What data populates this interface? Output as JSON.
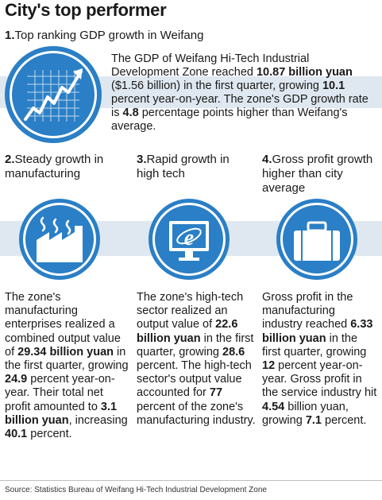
{
  "title": "City's top performer",
  "section1": {
    "number": "1.",
    "heading": "Top ranking GDP growth in Weifang",
    "text_a": "The GDP of Weifang Hi-Tech Industrial Development Zone reached ",
    "bold_a": "10.87 billion yuan",
    "text_b": " ($1.56 billion) in the first quarter, growing ",
    "bold_b": "10.1",
    "text_c": " percent year-on-year. The zone's GDP growth rate is ",
    "bold_c": "4.8",
    "text_d": " percentage points higher than Weifang's average."
  },
  "section2": {
    "number": "2.",
    "heading": "Steady growth in manufacturing",
    "text_a": "The zone's manufacturing enterprises realized a combined output value of ",
    "bold_a": "29.34 billion yuan",
    "text_b": " in the first quarter, growing ",
    "bold_b": "24.9",
    "text_c": " percent year-on-year. Their total net profit amounted to ",
    "bold_c": "3.1 billion yuan",
    "text_d": ", increasing ",
    "bold_d": "40.1",
    "text_e": " percent."
  },
  "section3": {
    "number": "3.",
    "heading": "Rapid growth in high tech",
    "text_a": "The zone's high-tech sector realized an output value of ",
    "bold_a": "22.6 billion yuan",
    "text_b": " in the first quarter, growing ",
    "bold_b": "28.6",
    "text_c": " percent. The high-tech sector's output value accounted for ",
    "bold_c": "77",
    "text_d": " percent of the zone's manufacturing industry."
  },
  "section4": {
    "number": "4.",
    "heading": "Gross profit growth higher than city average",
    "text_a": "Gross profit in the manufacturing industry reached ",
    "bold_a": "6.33 billion yuan",
    "text_b": " in the first quarter, growing ",
    "bold_b": "12",
    "text_c": " percent year-on-year. Gross profit in the service industry hit ",
    "bold_c": "4.54",
    "text_d": " billion yuan, growing ",
    "bold_d": "7.1",
    "text_e": " percent."
  },
  "source": "Source: Statistics Bureau of Weifang Hi-Tech Industrial Development Zone",
  "colors": {
    "accent_blue": "#2a7fc6",
    "band": "#dfe8f0",
    "text": "#1a1a1a"
  },
  "icons": [
    "growth-chart-icon",
    "factory-icon",
    "ie-monitor-icon",
    "briefcase-icon"
  ]
}
